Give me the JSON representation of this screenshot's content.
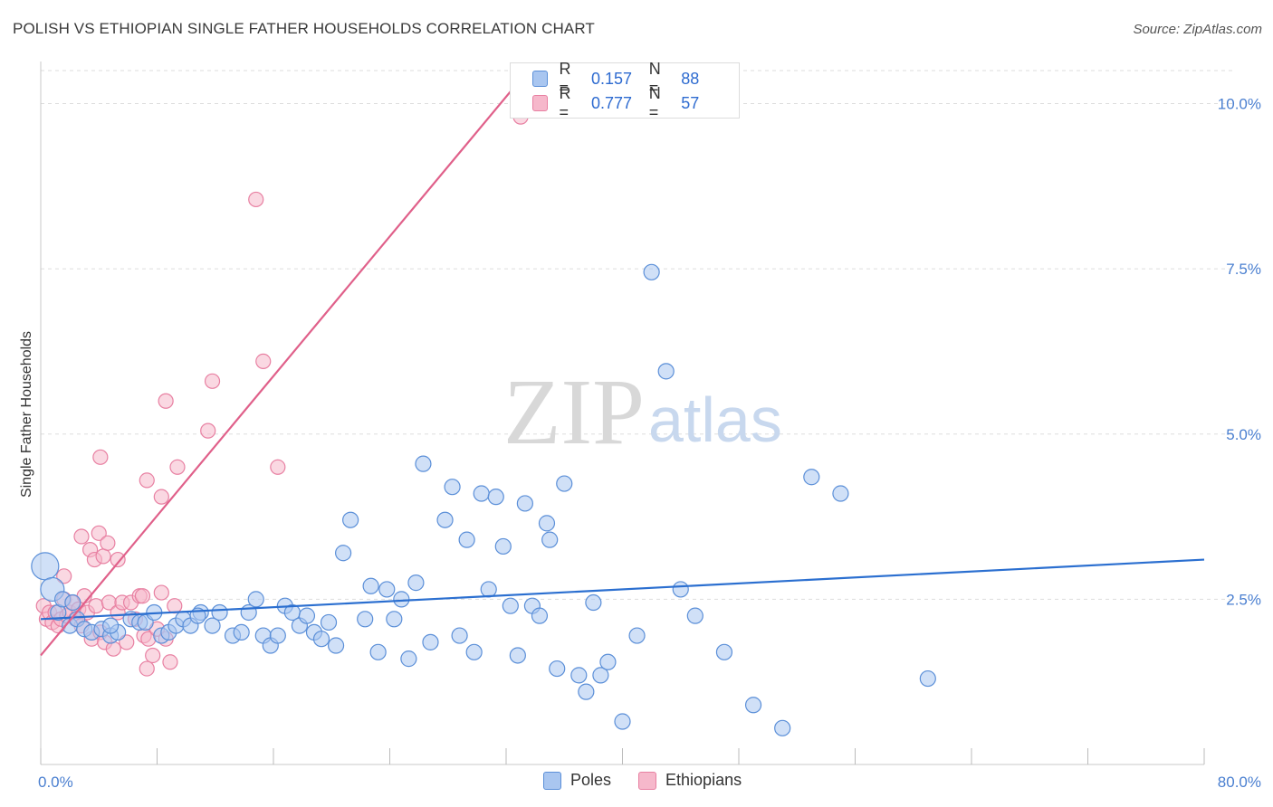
{
  "title": "POLISH VS ETHIOPIAN SINGLE FATHER HOUSEHOLDS CORRELATION CHART",
  "source": "Source: ZipAtlas.com",
  "watermark": {
    "zip": "ZIP",
    "atlas": "atlas"
  },
  "colors": {
    "poles_fill": "#a9c6f0",
    "poles_stroke": "#5b8fd8",
    "poles_line": "#2b6fd0",
    "eth_fill": "#f6b8cb",
    "eth_stroke": "#e880a2",
    "eth_line": "#e0608a",
    "grid": "#dddddd",
    "tick_text": "#4a7fd0"
  },
  "legend": {
    "rows": [
      {
        "r_label": "R =",
        "r_value": "0.157",
        "n_label": "N =",
        "n_value": "88"
      },
      {
        "r_label": "R =",
        "r_value": "0.777",
        "n_label": "N =",
        "n_value": "57"
      }
    ]
  },
  "bottom_legend": [
    "Poles",
    "Ethiopians"
  ],
  "chart_data": {
    "type": "scatter",
    "title": "POLISH VS ETHIOPIAN SINGLE FATHER HOUSEHOLDS CORRELATION CHART",
    "xlabel": "",
    "ylabel": "Single Father Households",
    "xlim": [
      0,
      80
    ],
    "ylim": [
      0,
      10.5
    ],
    "x_tick_labels": [
      "0.0%",
      "80.0%"
    ],
    "y_tick_labels": [
      "2.5%",
      "5.0%",
      "7.5%",
      "10.0%"
    ],
    "y_ticks": [
      2.5,
      5.0,
      7.5,
      10.0
    ],
    "grid": true,
    "legend_position": "top-center",
    "series": [
      {
        "name": "Poles",
        "trend": {
          "x": [
            0,
            80
          ],
          "y": [
            2.2,
            3.1
          ]
        },
        "points": [
          [
            0.3,
            3.0
          ],
          [
            0.8,
            2.65
          ],
          [
            1.2,
            2.3
          ],
          [
            1.5,
            2.5
          ],
          [
            2.0,
            2.1
          ],
          [
            2.5,
            2.2
          ],
          [
            3.0,
            2.05
          ],
          [
            3.5,
            2.0
          ],
          [
            4.2,
            2.05
          ],
          [
            4.8,
            1.95
          ],
          [
            5.3,
            2.0
          ],
          [
            6.2,
            2.2
          ],
          [
            6.8,
            2.15
          ],
          [
            7.2,
            2.15
          ],
          [
            7.8,
            2.3
          ],
          [
            8.3,
            1.95
          ],
          [
            8.8,
            2.0
          ],
          [
            9.3,
            2.1
          ],
          [
            9.8,
            2.2
          ],
          [
            10.3,
            2.1
          ],
          [
            11.0,
            2.3
          ],
          [
            11.8,
            2.1
          ],
          [
            12.3,
            2.3
          ],
          [
            13.2,
            1.95
          ],
          [
            13.8,
            2.0
          ],
          [
            14.3,
            2.3
          ],
          [
            14.8,
            2.5
          ],
          [
            15.3,
            1.95
          ],
          [
            15.8,
            1.8
          ],
          [
            16.3,
            1.95
          ],
          [
            16.8,
            2.4
          ],
          [
            17.3,
            2.3
          ],
          [
            17.8,
            2.1
          ],
          [
            18.3,
            2.25
          ],
          [
            18.8,
            2.0
          ],
          [
            19.3,
            1.9
          ],
          [
            19.8,
            2.15
          ],
          [
            20.3,
            1.8
          ],
          [
            20.8,
            3.2
          ],
          [
            21.3,
            3.7
          ],
          [
            22.3,
            2.2
          ],
          [
            22.7,
            2.7
          ],
          [
            23.2,
            1.7
          ],
          [
            23.8,
            2.65
          ],
          [
            24.3,
            2.2
          ],
          [
            24.8,
            2.5
          ],
          [
            25.3,
            1.6
          ],
          [
            25.8,
            2.75
          ],
          [
            26.3,
            4.55
          ],
          [
            26.8,
            1.85
          ],
          [
            27.8,
            3.7
          ],
          [
            28.3,
            4.2
          ],
          [
            28.8,
            1.95
          ],
          [
            29.3,
            3.4
          ],
          [
            29.8,
            1.7
          ],
          [
            30.3,
            4.1
          ],
          [
            30.8,
            2.65
          ],
          [
            31.3,
            4.05
          ],
          [
            31.8,
            3.3
          ],
          [
            32.3,
            2.4
          ],
          [
            32.8,
            1.65
          ],
          [
            33.3,
            3.95
          ],
          [
            33.8,
            2.4
          ],
          [
            34.3,
            2.25
          ],
          [
            34.8,
            3.65
          ],
          [
            35.0,
            3.4
          ],
          [
            35.5,
            1.45
          ],
          [
            36.0,
            4.25
          ],
          [
            37.0,
            1.35
          ],
          [
            37.5,
            1.1
          ],
          [
            38.0,
            2.45
          ],
          [
            38.5,
            1.35
          ],
          [
            39.0,
            1.55
          ],
          [
            40.0,
            0.65
          ],
          [
            41.0,
            1.95
          ],
          [
            42.0,
            7.45
          ],
          [
            43.0,
            5.95
          ],
          [
            44.0,
            2.65
          ],
          [
            45.0,
            2.25
          ],
          [
            47.0,
            1.7
          ],
          [
            49.0,
            0.9
          ],
          [
            51.0,
            0.55
          ],
          [
            53.0,
            4.35
          ],
          [
            55.0,
            4.1
          ],
          [
            61.0,
            1.3
          ],
          [
            2.2,
            2.45
          ],
          [
            4.8,
            2.1
          ],
          [
            10.8,
            2.25
          ]
        ]
      },
      {
        "name": "Ethiopians",
        "trend": {
          "x": [
            0,
            33.5
          ],
          "y": [
            1.65,
            10.5
          ]
        },
        "points": [
          [
            0.2,
            2.4
          ],
          [
            0.4,
            2.2
          ],
          [
            0.6,
            2.3
          ],
          [
            0.8,
            2.15
          ],
          [
            1.0,
            2.3
          ],
          [
            1.2,
            2.1
          ],
          [
            1.4,
            2.2
          ],
          [
            1.6,
            2.5
          ],
          [
            1.8,
            2.25
          ],
          [
            2.0,
            2.3
          ],
          [
            2.2,
            2.45
          ],
          [
            2.4,
            2.2
          ],
          [
            2.6,
            2.35
          ],
          [
            2.8,
            2.1
          ],
          [
            3.0,
            2.55
          ],
          [
            3.2,
            2.3
          ],
          [
            3.5,
            1.9
          ],
          [
            3.8,
            2.4
          ],
          [
            4.1,
            2.0
          ],
          [
            4.4,
            1.85
          ],
          [
            4.7,
            2.45
          ],
          [
            5.0,
            1.75
          ],
          [
            5.3,
            2.3
          ],
          [
            5.6,
            2.45
          ],
          [
            5.9,
            1.85
          ],
          [
            6.2,
            2.45
          ],
          [
            6.5,
            2.2
          ],
          [
            6.8,
            2.55
          ],
          [
            7.1,
            1.95
          ],
          [
            7.4,
            1.9
          ],
          [
            7.7,
            1.65
          ],
          [
            8.0,
            2.05
          ],
          [
            8.3,
            2.6
          ],
          [
            8.6,
            1.9
          ],
          [
            8.9,
            1.55
          ],
          [
            9.2,
            2.4
          ],
          [
            1.6,
            2.85
          ],
          [
            2.8,
            3.45
          ],
          [
            3.4,
            3.25
          ],
          [
            3.7,
            3.1
          ],
          [
            4.0,
            3.5
          ],
          [
            4.3,
            3.15
          ],
          [
            4.6,
            3.35
          ],
          [
            5.3,
            3.1
          ],
          [
            7.0,
            2.55
          ],
          [
            4.1,
            4.65
          ],
          [
            7.3,
            4.3
          ],
          [
            8.3,
            4.05
          ],
          [
            9.4,
            4.5
          ],
          [
            11.5,
            5.05
          ],
          [
            11.8,
            5.8
          ],
          [
            8.6,
            5.5
          ],
          [
            16.3,
            4.5
          ],
          [
            15.3,
            6.1
          ],
          [
            14.8,
            8.55
          ],
          [
            33.0,
            9.8
          ],
          [
            7.3,
            1.45
          ]
        ]
      }
    ]
  }
}
